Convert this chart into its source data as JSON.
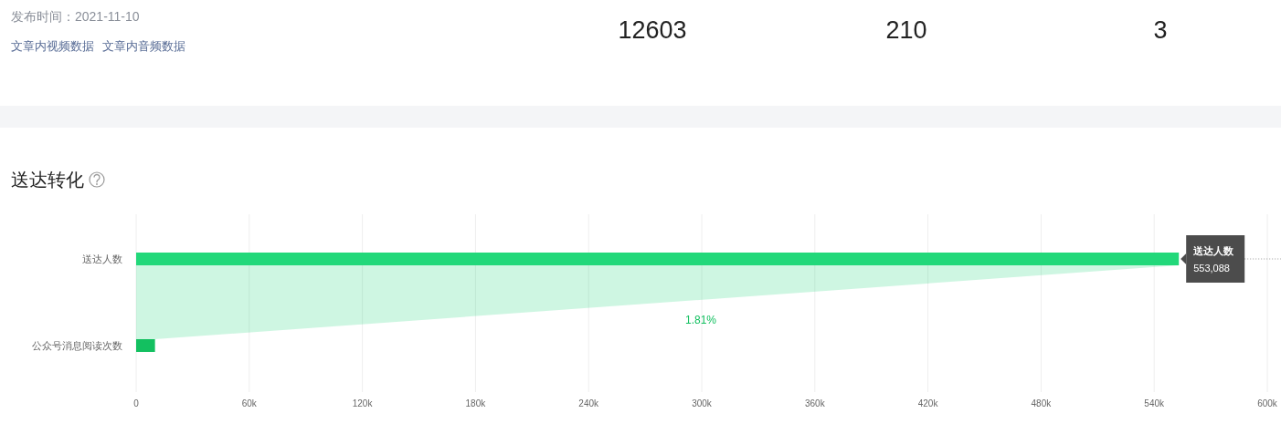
{
  "chart_data": [
    {
      "type": "other",
      "annotations": [
        "发布时间：2021-11-10",
        "文章内视频数据",
        "文章内音频数据",
        "12603",
        "210",
        "3"
      ]
    },
    {
      "type": "bar",
      "orientation": "horizontal",
      "title": "送达转化",
      "categories": [
        "送达人数",
        "公众号消息阅读次数"
      ],
      "values": [
        553088,
        10000
      ],
      "colors": [
        "#22d87a",
        "#13c060"
      ],
      "value_labels": [
        "553,088",
        null
      ],
      "xlim": [
        0,
        600000
      ],
      "xticks": [
        {
          "value": 0,
          "label": "0"
        },
        {
          "value": 60000,
          "label": "60k"
        },
        {
          "value": 120000,
          "label": "120k"
        },
        {
          "value": 180000,
          "label": "180k"
        },
        {
          "value": 240000,
          "label": "240k"
        },
        {
          "value": 300000,
          "label": "300k"
        },
        {
          "value": 360000,
          "label": "360k"
        },
        {
          "value": 420000,
          "label": "420k"
        },
        {
          "value": 480000,
          "label": "480k"
        },
        {
          "value": 540000,
          "label": "540k"
        },
        {
          "value": 600000,
          "label": "600k"
        }
      ],
      "grid": "x",
      "annotations": [
        "1.81%"
      ]
    }
  ]
}
